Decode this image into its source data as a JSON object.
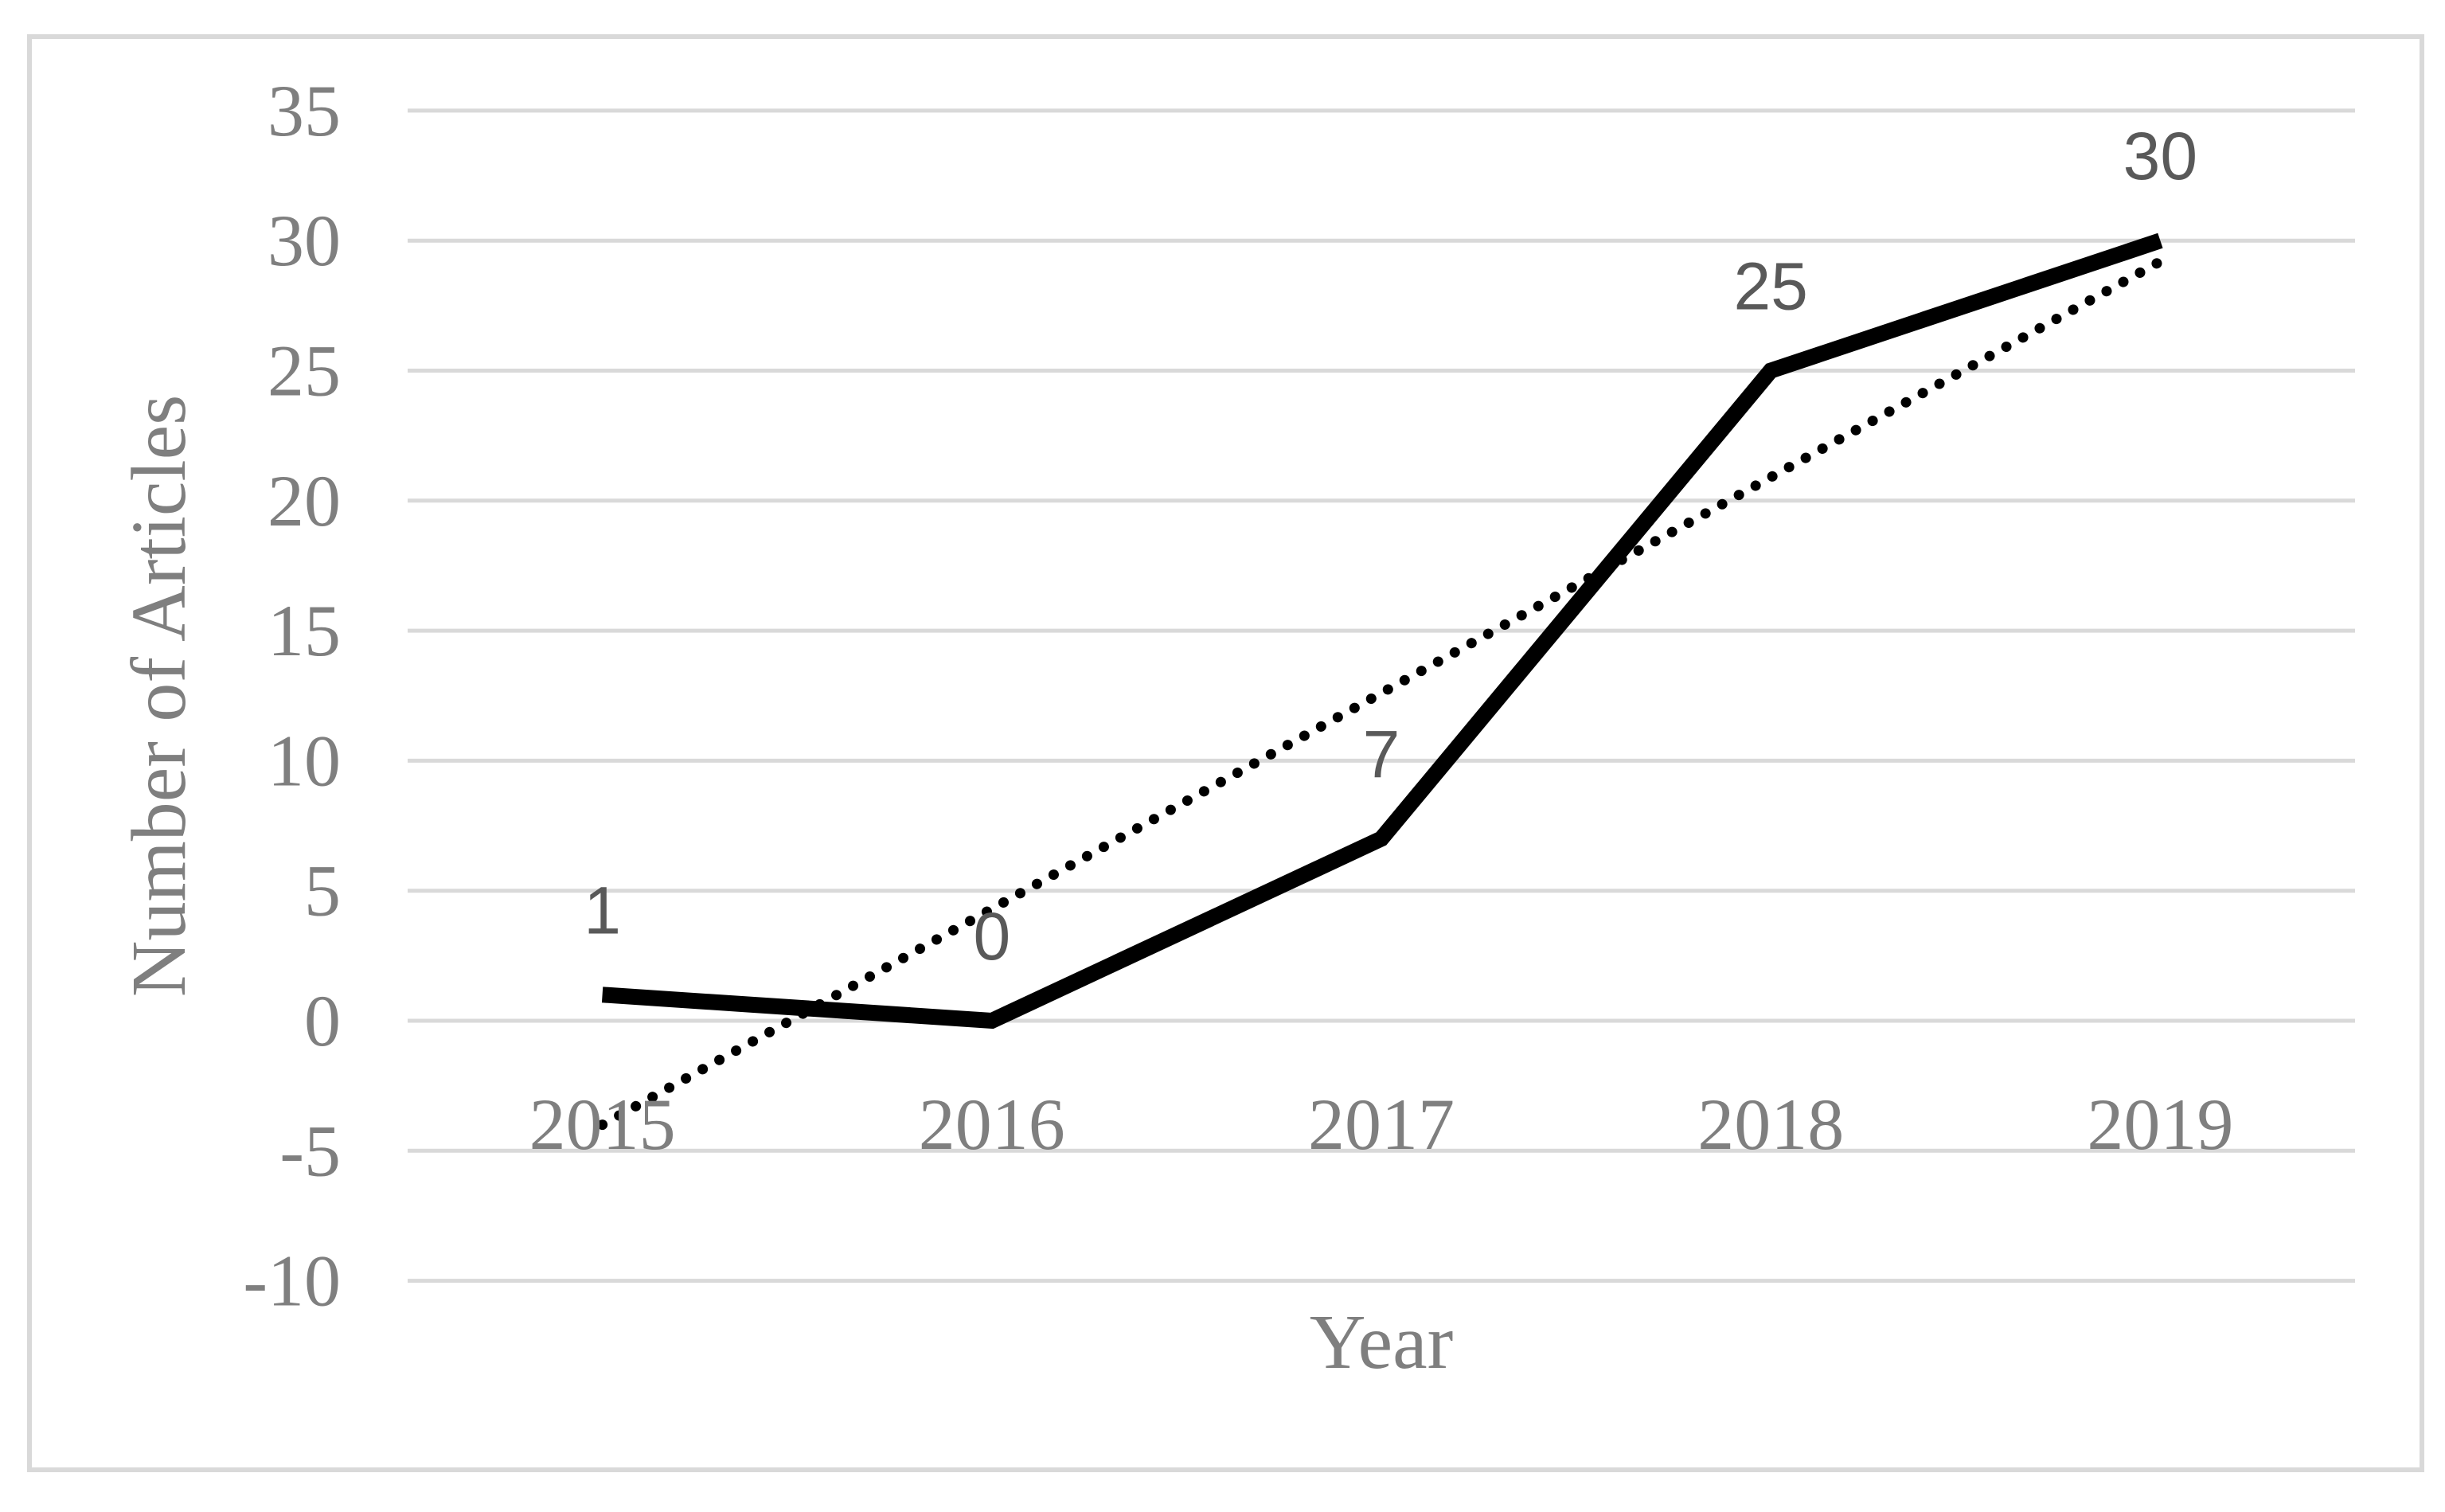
{
  "figure": {
    "background": "#ffffff",
    "border_color": "#d9d9d9"
  },
  "chart_data": {
    "type": "line",
    "title": "",
    "categories": [
      "2015",
      "2016",
      "2017",
      "2018",
      "2019"
    ],
    "series": [
      {
        "name": "Number of Articles",
        "values": [
          1,
          0,
          7,
          25,
          30
        ],
        "data_labels": [
          "1",
          "0",
          "7",
          "25",
          "30"
        ],
        "color": "#000000",
        "style": "solid-thick"
      }
    ],
    "trendline": {
      "type": "linear",
      "style": "dotted",
      "color": "#000000",
      "start_value": -4.0,
      "end_value": 29.2
    },
    "xlabel": "Year",
    "ylabel": "Number of Articles",
    "ylim": [
      -10,
      35
    ],
    "ytick_step": 5,
    "yticks": [
      "35",
      "30",
      "25",
      "20",
      "15",
      "10",
      "5",
      "0",
      "-5",
      "-10"
    ],
    "grid": "horizontal",
    "gridline_color": "#d9d9d9",
    "tick_label_color": "#7f7f7f",
    "axis_title_color": "#7f7f7f",
    "data_label_color": "#595959",
    "legend": "none"
  }
}
